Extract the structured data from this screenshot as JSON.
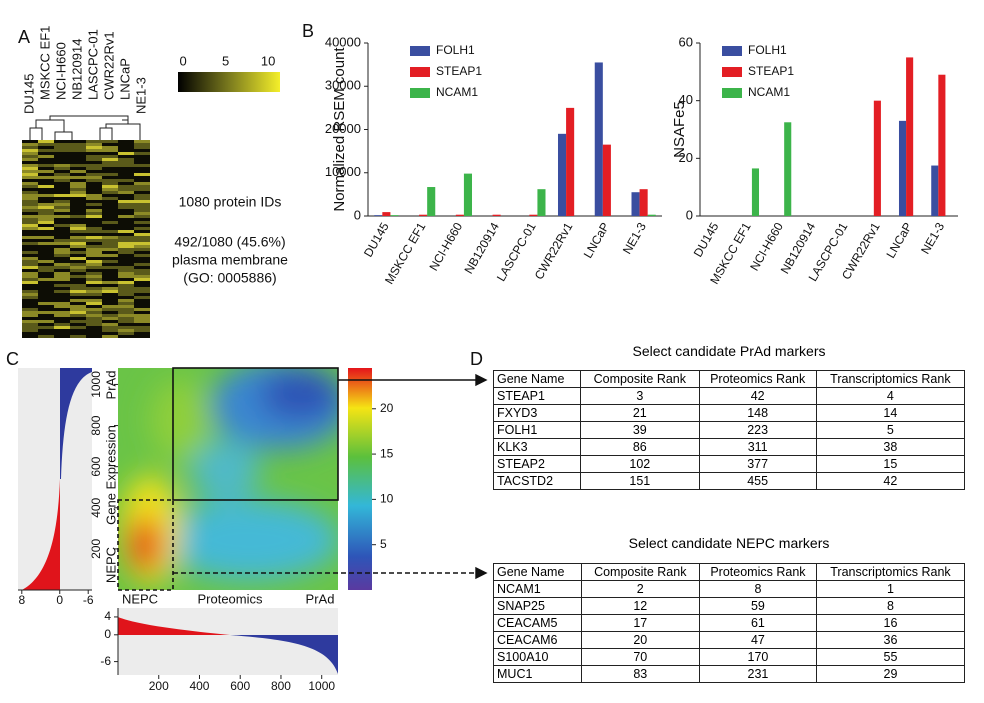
{
  "panel_labels": [
    "A",
    "B",
    "C",
    "D"
  ],
  "panel_a": {
    "columns": [
      "DU145",
      "MSKCC EF1",
      "NCI-H660",
      "NB120914",
      "LASCPC-01",
      "CWR22Rv1",
      "LNCaP",
      "NE1-3"
    ],
    "scale_lim": [
      -0.6,
      11.4
    ],
    "scale_ticks": [
      0,
      5,
      10
    ],
    "notes": [
      "1080 protein IDs",
      "492/1080 (45.6%)",
      "plasma membrane",
      "(GO: 0005886)"
    ]
  },
  "chart_data": [
    {
      "type": "bar",
      "y_label": "Normalized RSEM count",
      "legend": "upper left",
      "categories": [
        "DU145",
        "MSKCC EF1",
        "NCI-H660",
        "NB120914",
        "LASCPC-01",
        "CWR22Rv1",
        "LNCaP",
        "NE1-3"
      ],
      "ylim": [
        0,
        40000
      ],
      "yticks": [
        0,
        10000,
        20000,
        30000,
        40000
      ],
      "series": [
        {
          "name": "FOLH1",
          "color": "#3a4ea0",
          "values": [
            200,
            0,
            0,
            0,
            0,
            19000,
            35500,
            5500
          ]
        },
        {
          "name": "STEAP1",
          "color": "#e31e24",
          "values": [
            900,
            300,
            300,
            300,
            300,
            25000,
            16500,
            6200
          ]
        },
        {
          "name": "NCAM1",
          "color": "#3cb44a",
          "values": [
            200,
            6700,
            9800,
            0,
            6200,
            0,
            0,
            300
          ]
        }
      ]
    },
    {
      "type": "bar",
      "y_label": "NSAFe5",
      "legend": "upper left",
      "categories": [
        "DU145",
        "MSKCC EF1",
        "NCI-H660",
        "NB120914",
        "LASCPC-01",
        "CWR22Rv1",
        "LNCaP",
        "NE1-3"
      ],
      "ylim": [
        0,
        60
      ],
      "yticks": [
        0,
        20,
        40,
        60
      ],
      "series": [
        {
          "name": "FOLH1",
          "color": "#3a4ea0",
          "values": [
            0,
            0,
            0,
            0,
            0,
            0,
            33,
            17.5
          ]
        },
        {
          "name": "STEAP1",
          "color": "#e31e24",
          "values": [
            0,
            0,
            0,
            0,
            0,
            40,
            55,
            49
          ]
        },
        {
          "name": "NCAM1",
          "color": "#3cb44a",
          "values": [
            0,
            16.5,
            32.5,
            0,
            0,
            0,
            0,
            0
          ]
        }
      ]
    }
  ],
  "panel_c": {
    "y_labels": [
      "PrAd",
      "Gene Expression",
      "NEPC"
    ],
    "x_labels": [
      "NEPC",
      "Proteomics",
      "PrAd"
    ],
    "xlim": [
      0,
      1080
    ],
    "xticks": [
      200,
      400,
      600,
      800,
      1000
    ],
    "ylim": [
      0,
      1080
    ],
    "yticks": [
      200,
      400,
      600,
      800,
      1000
    ],
    "colorbar_lim": [
      0,
      24.5
    ],
    "colorbar_ticks": [
      5,
      10,
      15,
      20
    ],
    "side_xlim": [
      8.8,
      -6.8
    ],
    "side_xticks": [
      8,
      0,
      -6
    ],
    "bottom_ylim": [
      6,
      -9
    ],
    "bottom_yticks": [
      4,
      0,
      -6
    ]
  },
  "tables": [
    {
      "title": "Select candidate PrAd markers",
      "header": [
        "Gene Name",
        "Composite Rank",
        "Proteomics Rank",
        "Transcriptomics Rank"
      ],
      "rows": [
        [
          "STEAP1",
          3,
          42,
          4
        ],
        [
          "FXYD3",
          21,
          148,
          14
        ],
        [
          "FOLH1",
          39,
          223,
          5
        ],
        [
          "KLK3",
          86,
          311,
          38
        ],
        [
          "STEAP2",
          102,
          377,
          15
        ],
        [
          "TACSTD2",
          151,
          455,
          42
        ]
      ]
    },
    {
      "title": "Select candidate NEPC markers",
      "header": [
        "Gene Name",
        "Composite Rank",
        "Proteomics Rank",
        "Transcriptomics Rank"
      ],
      "rows": [
        [
          "NCAM1",
          2,
          8,
          1
        ],
        [
          "SNAP25",
          12,
          59,
          8
        ],
        [
          "CEACAM5",
          17,
          61,
          16
        ],
        [
          "CEACAM6",
          20,
          47,
          36
        ],
        [
          "S100A10",
          70,
          170,
          55
        ],
        [
          "MUC1",
          83,
          231,
          29
        ]
      ]
    }
  ]
}
